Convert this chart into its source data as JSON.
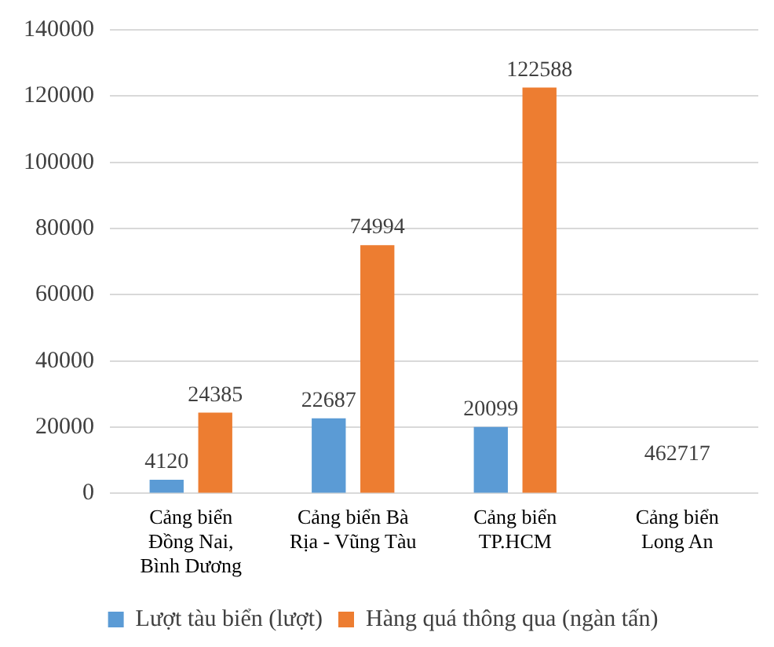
{
  "chart_data": {
    "type": "bar",
    "categories": [
      "Cảng biển\nĐồng Nai,\nBình Dương",
      "Cảng biển Bà\nRịa - Vũng Tàu",
      "Cảng biển\nTP.HCM",
      "Cảng biển\nLong An"
    ],
    "series": [
      {
        "name": "Lượt tàu biển (lượt)",
        "color": "#5b9bd5",
        "values": [
          4120,
          22687,
          20099,
          null
        ],
        "value_labels": [
          "4120",
          "22687",
          "20099",
          "462717"
        ]
      },
      {
        "name": "Hàng quá thông qua (ngàn tấn)",
        "color": "#ed7d31",
        "values": [
          24385,
          74994,
          122588,
          null
        ],
        "value_labels": [
          "24385",
          "74994",
          "122588",
          null
        ]
      }
    ],
    "ylim": [
      0,
      140000
    ],
    "yticks": [
      0,
      20000,
      40000,
      60000,
      80000,
      100000,
      120000,
      140000
    ],
    "grid": "y",
    "legend": "bottom"
  }
}
